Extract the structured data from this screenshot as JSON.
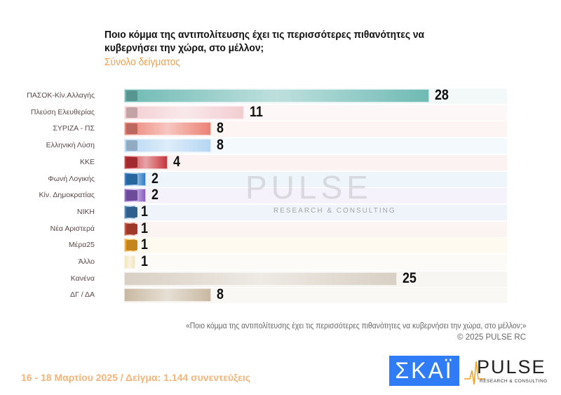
{
  "chart_data": {
    "type": "bar",
    "orientation": "horizontal",
    "title": "Ποιο κόμμα της αντιπολίτευσης έχει τις περισσότερες πιθανότητες να κυβερνήσει την χώρα, στο μέλλον;",
    "subtitle": "Σύνολο δείγματος",
    "categories": [
      "ΠΑΣΟΚ-Κίν.Αλλαγής",
      "Πλεύση Ελευθερίας",
      "ΣΥΡΙΖΑ - ΠΣ",
      "Ελληνική Λύση",
      "ΚΚΕ",
      "Φωνή Λογικής",
      "Κίν. Δημοκρατίας",
      "ΝΙΚΗ",
      "Νέα Αριστερά",
      "Μέρα25",
      "Άλλο",
      "Κανένα",
      "ΔΓ / ΔΑ"
    ],
    "values": [
      28,
      11,
      8,
      8,
      4,
      2,
      2,
      1,
      1,
      1,
      1,
      25,
      8
    ],
    "colors": [
      "#6fbab4",
      "#f2cdd1",
      "#ec8275",
      "#b5d6f3",
      "#c8343c",
      "#2f7ec6",
      "#8a5cc2",
      "#3b78b0",
      "#c54633",
      "#f5a623",
      "#f3e4bb",
      "#d9d0c4",
      "#c9b9a2"
    ],
    "row_tints": [
      "#f3f9f9",
      "#fdf7f8",
      "#fdf5f3",
      "#f4f9fd",
      "#fdf2f2",
      "#eef5fb",
      "#f5f2fb",
      "#eef4f9",
      "#fcf4f2",
      "#fefaef",
      "#fcfbf7",
      "#f8f6f3",
      "#faf8f5"
    ],
    "legend": "none",
    "grid": false
  },
  "watermark": {
    "main": "PULSE",
    "sub": "RESEARCH & CONSULTING"
  },
  "footer": {
    "question": "«Ποιο κόμμα της αντιπολίτευσης έχει τις περισσότερες πιθανότητες να κυβερνήσει την χώρα, στο μέλλον;»",
    "copyright": "©  2025  PULSE RC",
    "date_sample": "16 - 18 Μαρτίου 2025  /  Δείγμα:  1.144 συνεντεύξεις",
    "logo_skai": "ΣΚΑΪ",
    "logo_pulse": "PULSE",
    "logo_pulse_sub": "RESEARCH & CONSULTING"
  }
}
